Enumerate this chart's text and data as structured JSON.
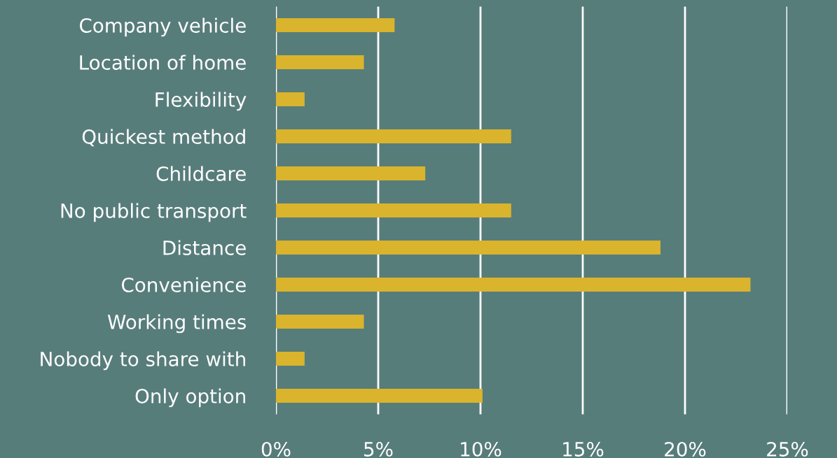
{
  "chart_data": {
    "type": "bar",
    "orientation": "horizontal",
    "categories": [
      "Company vehicle",
      "Location of home",
      "Flexibility",
      "Quickest method",
      "Childcare",
      "No public transport",
      "Distance",
      "Convenience",
      "Working times",
      "Nobody to share with",
      "Only option"
    ],
    "values": [
      5.8,
      4.3,
      1.4,
      11.5,
      7.3,
      11.5,
      18.8,
      23.2,
      4.3,
      1.4,
      10.1
    ],
    "color": "#d9b42c",
    "xlim": [
      0,
      25
    ],
    "xticks": [
      {
        "value": 0,
        "label": "0%"
      },
      {
        "value": 5,
        "label": "5%"
      },
      {
        "value": 10,
        "label": "10%"
      },
      {
        "value": 15,
        "label": "15%"
      },
      {
        "value": 20,
        "label": "20%"
      },
      {
        "value": 25,
        "label": "25%"
      }
    ],
    "grid": "x"
  }
}
